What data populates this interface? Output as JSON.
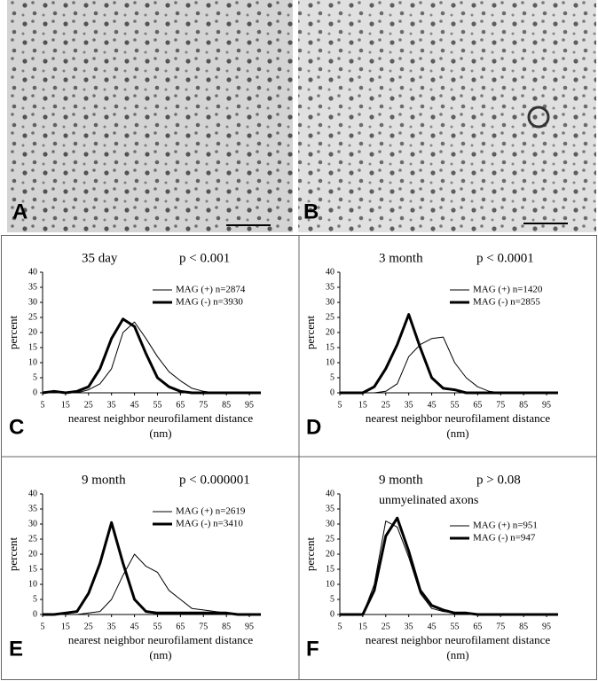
{
  "micrographs": [
    {
      "label": "A"
    },
    {
      "label": "B"
    }
  ],
  "chart_data": [
    {
      "type": "line",
      "panel_label": "C",
      "title": "35 day",
      "subtitle": "p < 0.001",
      "ylabel": "percent",
      "xlabel": "nearest neighbor neurofilament distance",
      "xlabel_unit": "(nm)",
      "x": [
        5,
        10,
        15,
        20,
        25,
        30,
        35,
        40,
        45,
        50,
        55,
        60,
        65,
        70,
        75,
        80,
        85,
        90,
        95,
        100
      ],
      "xlim": [
        5,
        100
      ],
      "xticks": [
        5,
        15,
        25,
        35,
        45,
        55,
        65,
        75,
        85,
        95
      ],
      "ylim": [
        0,
        40
      ],
      "yticks": [
        0,
        5,
        10,
        15,
        20,
        25,
        30,
        35,
        40
      ],
      "grid": false,
      "legend": "upper right",
      "series": [
        {
          "name": "MAG (+) n=2874",
          "color": "#000000",
          "width": 1,
          "values": [
            0,
            0.5,
            0,
            0,
            1,
            3,
            8,
            20,
            23.5,
            18,
            12,
            7,
            4,
            1.5,
            0.5,
            0,
            0,
            0,
            0,
            0
          ]
        },
        {
          "name": "MAG (-) n=3930",
          "color": "#000000",
          "width": 3,
          "values": [
            0,
            0.5,
            0,
            0.5,
            2,
            8,
            18,
            24.5,
            22,
            13,
            5,
            2,
            0.5,
            0,
            0,
            0,
            0,
            0,
            0,
            0
          ]
        }
      ]
    },
    {
      "type": "line",
      "panel_label": "D",
      "title": "3 month",
      "subtitle": "p < 0.0001",
      "ylabel": "percent",
      "xlabel": "nearest neighbor neurofilament distance",
      "xlabel_unit": "(nm)",
      "x": [
        5,
        10,
        15,
        20,
        25,
        30,
        35,
        40,
        45,
        50,
        55,
        60,
        65,
        70,
        75,
        80,
        85,
        90,
        95,
        100
      ],
      "xlim": [
        5,
        100
      ],
      "xticks": [
        5,
        15,
        25,
        35,
        45,
        55,
        65,
        75,
        85,
        95
      ],
      "ylim": [
        0,
        40
      ],
      "yticks": [
        0,
        5,
        10,
        15,
        20,
        25,
        30,
        35,
        40
      ],
      "grid": false,
      "legend": "upper right",
      "series": [
        {
          "name": "MAG (+) n=1420",
          "color": "#000000",
          "width": 1,
          "values": [
            0,
            0,
            0,
            0,
            0.5,
            3,
            12,
            16,
            18,
            18.5,
            10,
            5,
            2,
            0.5,
            0,
            0,
            0,
            0,
            0,
            0
          ]
        },
        {
          "name": "MAG (-) n=2855",
          "color": "#000000",
          "width": 3,
          "values": [
            0,
            0,
            0,
            2,
            8,
            16,
            26,
            15,
            5,
            1.5,
            1,
            0,
            0,
            0,
            0,
            0,
            0,
            0,
            0,
            0
          ]
        }
      ]
    },
    {
      "type": "line",
      "panel_label": "E",
      "title": "9 month",
      "subtitle": "p < 0.000001",
      "ylabel": "percent",
      "xlabel": "nearest neighbor neurofilament distance",
      "xlabel_unit": "(nm)",
      "x": [
        5,
        10,
        15,
        20,
        25,
        30,
        35,
        40,
        45,
        50,
        55,
        60,
        65,
        70,
        75,
        80,
        85,
        90,
        95,
        100
      ],
      "xlim": [
        5,
        100
      ],
      "xticks": [
        5,
        15,
        25,
        35,
        45,
        55,
        65,
        75,
        85,
        95
      ],
      "ylim": [
        0,
        40
      ],
      "yticks": [
        0,
        5,
        10,
        15,
        20,
        25,
        30,
        35,
        40
      ],
      "grid": false,
      "legend": "upper right",
      "series": [
        {
          "name": "MAG (+) n=2619",
          "color": "#000000",
          "width": 1,
          "values": [
            0,
            0,
            0,
            0,
            0.5,
            1,
            5,
            13,
            20,
            16,
            14,
            8,
            5,
            2,
            1.5,
            1,
            0.5,
            0,
            0,
            0
          ]
        },
        {
          "name": "MAG (-) n=3410",
          "color": "#000000",
          "width": 3,
          "values": [
            0,
            0,
            0.5,
            1,
            7,
            17,
            30.5,
            17,
            5,
            1,
            0.5,
            0.5,
            0.5,
            0.5,
            0.5,
            0.5,
            0.5,
            0,
            0,
            0
          ]
        }
      ]
    },
    {
      "type": "line",
      "panel_label": "F",
      "title": "9 month",
      "subtitle": "p > 0.08",
      "annotation": "unmyelinated axons",
      "ylabel": "percent",
      "xlabel": "nearest neighbor neurofilament distance",
      "xlabel_unit": "(nm)",
      "x": [
        5,
        10,
        15,
        20,
        25,
        30,
        35,
        40,
        45,
        50,
        55,
        60,
        65,
        70,
        75,
        80,
        85,
        90,
        95,
        100
      ],
      "xlim": [
        5,
        100
      ],
      "xticks": [
        5,
        15,
        25,
        35,
        45,
        55,
        65,
        75,
        85,
        95
      ],
      "ylim": [
        0,
        40
      ],
      "yticks": [
        0,
        5,
        10,
        15,
        20,
        25,
        30,
        35,
        40
      ],
      "grid": false,
      "legend": "upper right",
      "series": [
        {
          "name": "MAG (+) n=951",
          "color": "#000000",
          "width": 1,
          "values": [
            0,
            0,
            0,
            10,
            31,
            29,
            19,
            7,
            2,
            1,
            0.5,
            0.5,
            0,
            0,
            0,
            0,
            0,
            0,
            0,
            0
          ]
        },
        {
          "name": "MAG (-) n=947",
          "color": "#000000",
          "width": 3,
          "values": [
            0,
            0,
            0,
            8,
            26,
            32,
            21,
            8,
            3,
            1.5,
            0.5,
            0.5,
            0,
            0,
            0,
            0,
            0,
            0,
            0,
            0
          ]
        }
      ]
    }
  ]
}
